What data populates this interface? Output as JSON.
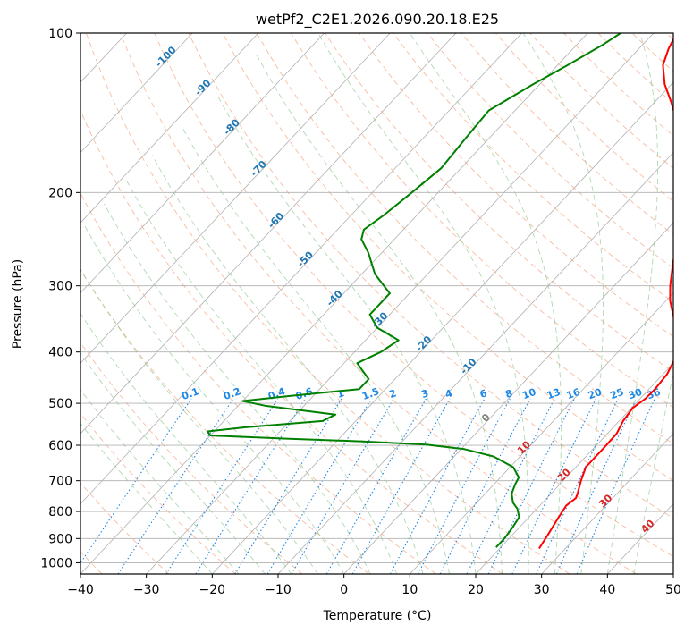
{
  "chart_data": {
    "type": "line",
    "title": "wetPf2_C2E1.2026.090.20.18.E25",
    "xlabel": "Temperature (°C)",
    "ylabel": "Pressure (hPa)",
    "xlim": [
      -40,
      50
    ],
    "ylim": [
      1050,
      100
    ],
    "y_scale": "log",
    "skew": true,
    "grid": true,
    "x_ticks": [
      -40,
      -30,
      -20,
      -10,
      0,
      10,
      20,
      30,
      40,
      50
    ],
    "y_ticks": [
      100,
      200,
      300,
      400,
      500,
      600,
      700,
      800,
      900,
      1000
    ],
    "colors": {
      "temperature": "#ff0000",
      "dewpoint": "#008000",
      "isotherm": "#b0b0b0",
      "dry_adiabat": "#f4a582",
      "moist_adiabat": "#8fc98f",
      "mixing_ratio": "#1e88e5",
      "isotherm_label": "#1f77b4",
      "warm_label": "#d62728",
      "zero_label": "#7f7f7f"
    },
    "series": [
      {
        "values": [
          {
            "p": 940,
            "t": 26
          },
          {
            "p": 880,
            "t": 25.3
          },
          {
            "p": 820,
            "t": 24.5
          },
          {
            "p": 780,
            "t": 24
          },
          {
            "p": 755,
            "t": 24.4
          },
          {
            "p": 740,
            "t": 24
          },
          {
            "p": 700,
            "t": 22.7
          },
          {
            "p": 660,
            "t": 21.5
          },
          {
            "p": 630,
            "t": 21.5
          },
          {
            "p": 600,
            "t": 21.5
          },
          {
            "p": 570,
            "t": 21.4
          },
          {
            "p": 540,
            "t": 20.6
          },
          {
            "p": 510,
            "t": 20.2
          },
          {
            "p": 490,
            "t": 20.8
          },
          {
            "p": 470,
            "t": 20.9
          },
          {
            "p": 440,
            "t": 20.6
          },
          {
            "p": 410,
            "t": 19.5
          },
          {
            "p": 380,
            "t": 17.5
          },
          {
            "p": 350,
            "t": 14.2
          },
          {
            "p": 320,
            "t": 10.6
          },
          {
            "p": 300,
            "t": 8.5
          },
          {
            "p": 270,
            "t": 5.5
          },
          {
            "p": 240,
            "t": 2.5
          },
          {
            "p": 210,
            "t": -1
          },
          {
            "p": 190,
            "t": -4.5
          },
          {
            "p": 170,
            "t": -8.5
          },
          {
            "p": 150,
            "t": -13
          },
          {
            "p": 135,
            "t": -17.5
          },
          {
            "p": 125,
            "t": -21
          },
          {
            "p": 115,
            "t": -24
          },
          {
            "p": 107,
            "t": -25.5
          },
          {
            "p": 100,
            "t": -26.5
          }
        ]
      },
      {
        "values": [
          {
            "p": 935,
            "t": 19.3
          },
          {
            "p": 900,
            "t": 19.3
          },
          {
            "p": 860,
            "t": 19
          },
          {
            "p": 820,
            "t": 18.5
          },
          {
            "p": 790,
            "t": 17
          },
          {
            "p": 770,
            "t": 15.5
          },
          {
            "p": 740,
            "t": 14
          },
          {
            "p": 710,
            "t": 13.2
          },
          {
            "p": 690,
            "t": 12.8
          },
          {
            "p": 660,
            "t": 10.5
          },
          {
            "p": 630,
            "t": 6
          },
          {
            "p": 610,
            "t": 0.5
          },
          {
            "p": 598,
            "t": -6
          },
          {
            "p": 590,
            "t": -16
          },
          {
            "p": 583,
            "t": -28
          },
          {
            "p": 575,
            "t": -40
          },
          {
            "p": 565,
            "t": -41
          },
          {
            "p": 555,
            "t": -36
          },
          {
            "p": 540,
            "t": -25
          },
          {
            "p": 525,
            "t": -24
          },
          {
            "p": 505,
            "t": -36
          },
          {
            "p": 495,
            "t": -40
          },
          {
            "p": 485,
            "t": -34
          },
          {
            "p": 470,
            "t": -24
          },
          {
            "p": 450,
            "t": -24
          },
          {
            "p": 420,
            "t": -28
          },
          {
            "p": 400,
            "t": -26
          },
          {
            "p": 380,
            "t": -25
          },
          {
            "p": 360,
            "t": -30
          },
          {
            "p": 340,
            "t": -33
          },
          {
            "p": 310,
            "t": -33
          },
          {
            "p": 285,
            "t": -38
          },
          {
            "p": 260,
            "t": -42
          },
          {
            "p": 245,
            "t": -45
          },
          {
            "p": 235,
            "t": -46
          },
          {
            "p": 220,
            "t": -45
          },
          {
            "p": 200,
            "t": -44
          },
          {
            "p": 180,
            "t": -43
          },
          {
            "p": 160,
            "t": -43.5
          },
          {
            "p": 140,
            "t": -44
          },
          {
            "p": 125,
            "t": -41
          },
          {
            "p": 115,
            "t": -38.5
          },
          {
            "p": 105,
            "t": -36
          },
          {
            "p": 100,
            "t": -35
          }
        ]
      }
    ],
    "isotherm_labels": [
      "-100",
      "-90",
      "-80",
      "-70",
      "-60",
      "-50",
      "-40",
      "-30",
      "-20",
      "-10"
    ],
    "warm_isotherm_labels": [
      "0",
      "10",
      "20",
      "30",
      "40"
    ],
    "mixing_ratio_labels": [
      "0.1",
      "0.2",
      "0.4",
      "0.6",
      "1",
      "1.5",
      "2",
      "3",
      "4",
      "6",
      "8",
      "10",
      "13",
      "16",
      "20",
      "25",
      "30",
      "36"
    ]
  }
}
